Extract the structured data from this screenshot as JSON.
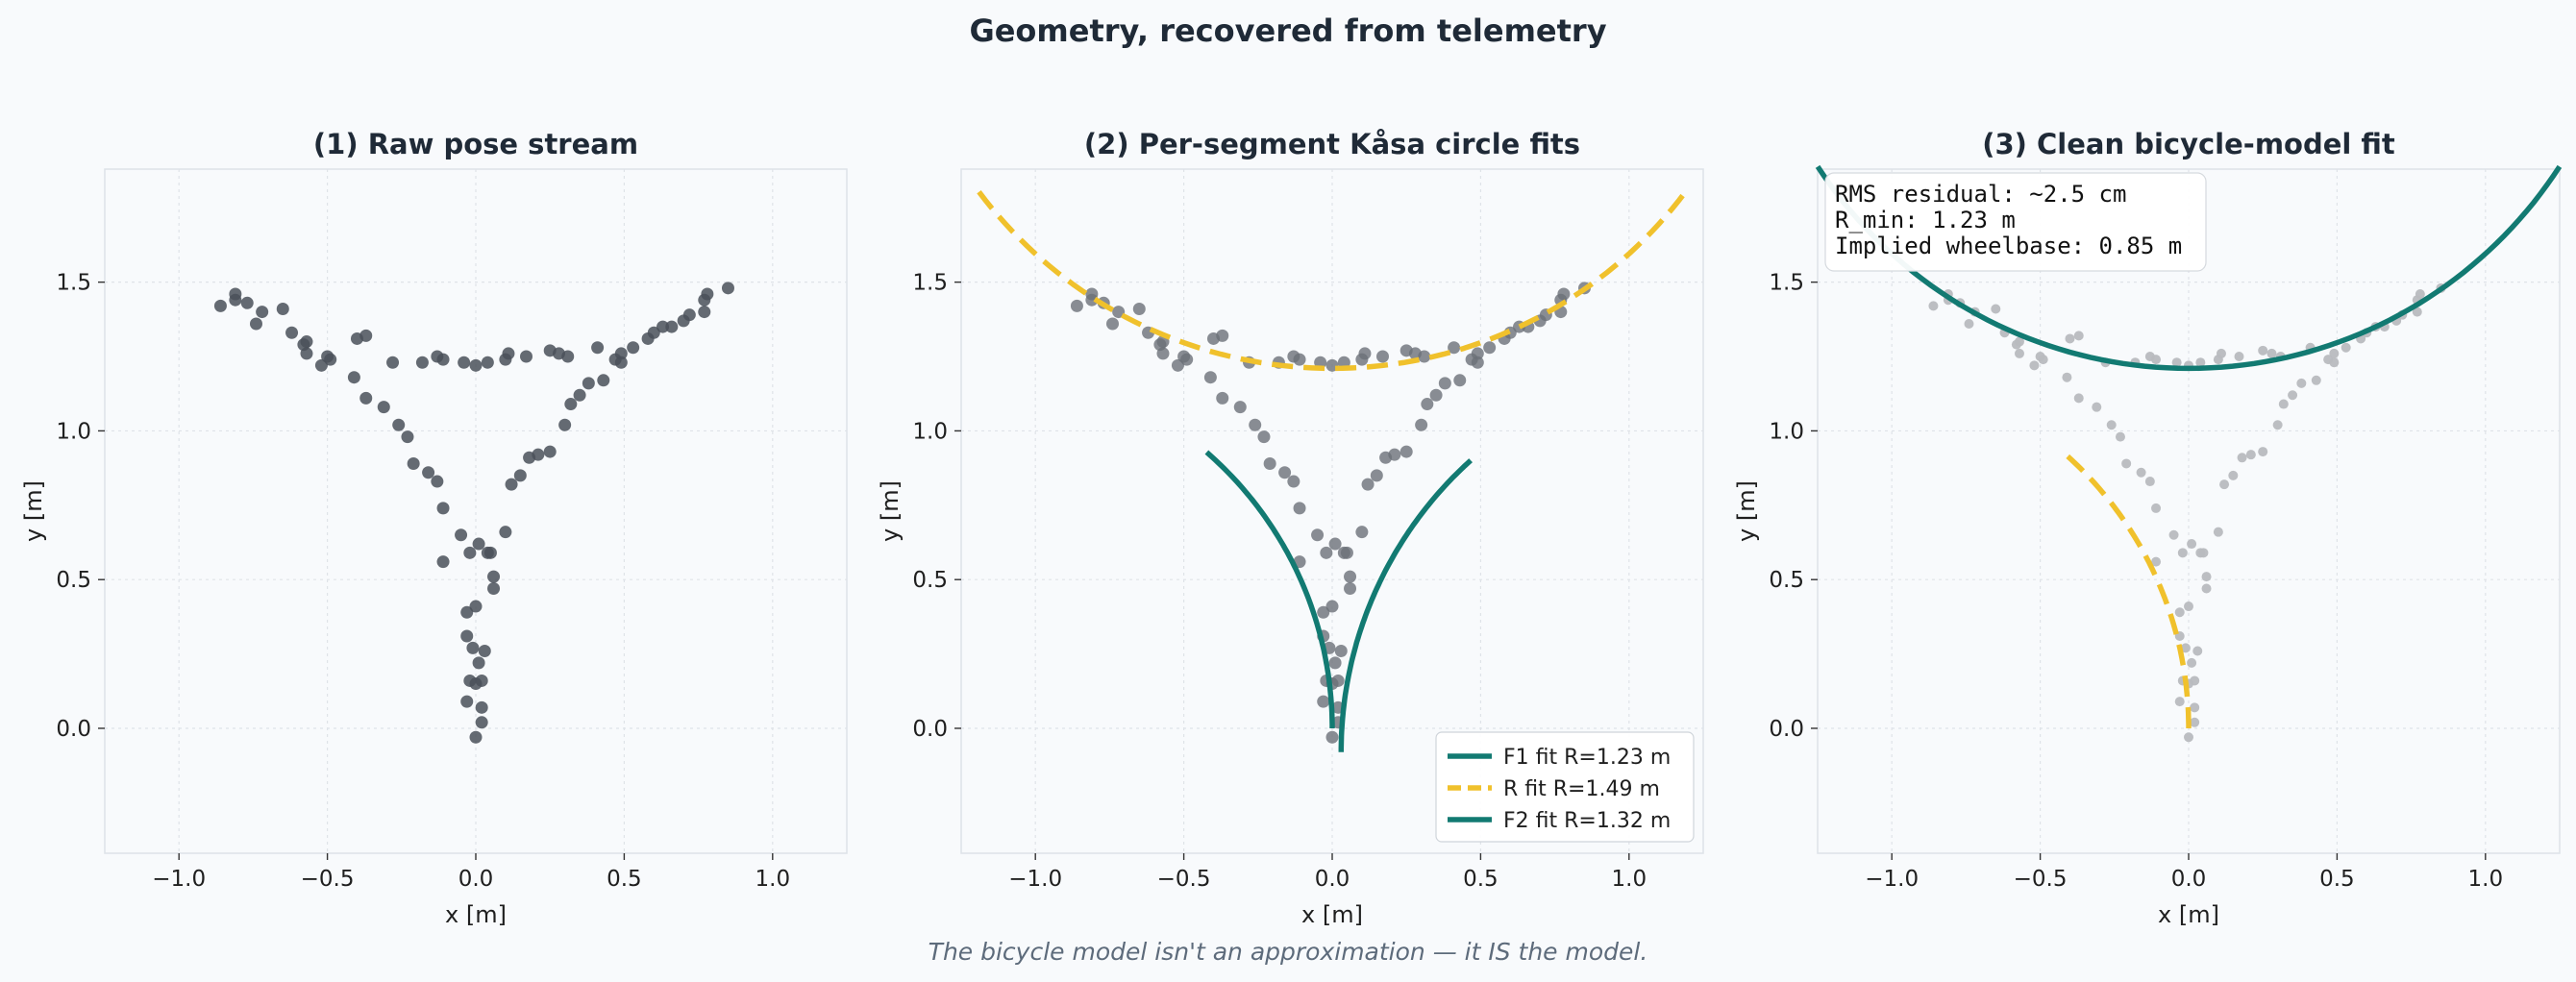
{
  "figure": {
    "suptitle": "Geometry, recovered from telemetry",
    "caption": "The bicycle model isn't an approximation — it IS the model."
  },
  "colors": {
    "teal": "#127a72",
    "gold": "#f0c12c",
    "raw_point": "#4a5059",
    "fit_point": "#6b7078",
    "faint_point": "#b8bbbf"
  },
  "chart_data": [
    {
      "type": "scatter",
      "title": "(1) Raw pose stream",
      "xlabel": "x [m]",
      "ylabel": "y [m]",
      "xlim": [
        -1.25,
        1.25
      ],
      "ylim": [
        -0.42,
        1.88
      ],
      "xticks": [
        "−1.0",
        "−0.5",
        "0.0",
        "0.5",
        "1.0"
      ],
      "yticks": [
        "0.0",
        "0.5",
        "1.0",
        "1.5"
      ],
      "grid": true,
      "series": [
        {
          "points_ref": "raw"
        }
      ]
    },
    {
      "type": "scatter",
      "title": "(2) Per-segment Kåsa circle fits",
      "xlabel": "x [m]",
      "ylabel": "y [m]",
      "xlim": [
        -1.25,
        1.25
      ],
      "ylim": [
        -0.42,
        1.88
      ],
      "xticks": [
        "−1.0",
        "−0.5",
        "0.0",
        "0.5",
        "1.0"
      ],
      "yticks": [
        "0.0",
        "0.5",
        "1.0",
        "1.5"
      ],
      "grid": true,
      "legend_position": "bottom-right",
      "series": [
        {
          "name": "F1 fit  R=1.23 m",
          "style": "solid",
          "color": "teal",
          "circle": {
            "cx": -1.23,
            "cy": 0.0,
            "r": 1.23,
            "from_deg": 0,
            "to_deg": 49
          }
        },
        {
          "name": "R fit  R=1.49 m",
          "style": "dashed",
          "color": "gold",
          "circle": {
            "cx": 0.0,
            "cy": 2.7,
            "r": 1.49,
            "from_deg": 217,
            "to_deg": 323
          }
        },
        {
          "name": "F2 fit  R=1.32 m",
          "style": "solid",
          "color": "teal",
          "circle": {
            "cx": 1.35,
            "cy": -0.08,
            "r": 1.32,
            "from_deg": 132,
            "to_deg": 180
          }
        }
      ]
    },
    {
      "type": "scatter",
      "title": "(3) Clean bicycle-model fit",
      "xlabel": "x [m]",
      "ylabel": "y [m]",
      "xlim": [
        -1.25,
        1.25
      ],
      "ylim": [
        -0.42,
        1.88
      ],
      "xticks": [
        "−1.0",
        "−0.5",
        "0.0",
        "0.5",
        "1.0"
      ],
      "yticks": [
        "0.0",
        "0.5",
        "1.0",
        "1.5"
      ],
      "grid": true,
      "annotation": [
        "RMS residual: ~2.5 cm",
        "R_min: 1.23 m",
        "Implied wheelbase: 0.85 m"
      ],
      "series": [
        {
          "style": "dashed",
          "color": "gold",
          "circle": {
            "cx": -1.23,
            "cy": 0.0,
            "r": 1.23,
            "from_deg": 0,
            "to_deg": 49
          },
          "clip_x_max": 0.0
        },
        {
          "style": "solid",
          "color": "teal",
          "circle": {
            "cx": 0.0,
            "cy": 2.7,
            "r": 1.49,
            "from_deg": 213,
            "to_deg": 327
          }
        }
      ]
    }
  ],
  "points": {
    "raw": [
      [
        -0.86,
        1.42
      ],
      [
        -0.81,
        1.44
      ],
      [
        -0.81,
        1.46
      ],
      [
        -0.77,
        1.43
      ],
      [
        -0.74,
        1.36
      ],
      [
        -0.72,
        1.4
      ],
      [
        -0.65,
        1.41
      ],
      [
        -0.62,
        1.33
      ],
      [
        -0.58,
        1.29
      ],
      [
        -0.57,
        1.3
      ],
      [
        -0.57,
        1.26
      ],
      [
        -0.52,
        1.22
      ],
      [
        -0.5,
        1.25
      ],
      [
        -0.4,
        1.31
      ],
      [
        -0.37,
        1.32
      ],
      [
        -0.28,
        1.23
      ],
      [
        -0.18,
        1.23
      ],
      [
        -0.13,
        1.25
      ],
      [
        -0.11,
        1.24
      ],
      [
        -0.04,
        1.23
      ],
      [
        0.0,
        1.22
      ],
      [
        0.04,
        1.23
      ],
      [
        0.1,
        1.24
      ],
      [
        0.11,
        1.26
      ],
      [
        0.17,
        1.25
      ],
      [
        0.25,
        1.27
      ],
      [
        0.28,
        1.26
      ],
      [
        0.31,
        1.25
      ],
      [
        0.41,
        1.28
      ],
      [
        0.47,
        1.24
      ],
      [
        0.49,
        1.26
      ],
      [
        0.53,
        1.28
      ],
      [
        0.58,
        1.31
      ],
      [
        0.6,
        1.33
      ],
      [
        0.63,
        1.35
      ],
      [
        0.66,
        1.35
      ],
      [
        0.7,
        1.37
      ],
      [
        0.72,
        1.39
      ],
      [
        0.77,
        1.4
      ],
      [
        0.77,
        1.44
      ],
      [
        0.78,
        1.46
      ],
      [
        0.85,
        1.48
      ],
      [
        -0.49,
        1.24
      ],
      [
        -0.41,
        1.18
      ],
      [
        -0.37,
        1.11
      ],
      [
        -0.31,
        1.08
      ],
      [
        -0.26,
        1.02
      ],
      [
        -0.23,
        0.98
      ],
      [
        -0.21,
        0.89
      ],
      [
        -0.16,
        0.86
      ],
      [
        -0.13,
        0.83
      ],
      [
        -0.11,
        0.74
      ],
      [
        -0.11,
        0.56
      ],
      [
        -0.05,
        0.65
      ],
      [
        -0.02,
        0.59
      ],
      [
        0.01,
        0.62
      ],
      [
        0.04,
        0.59
      ],
      [
        0.05,
        0.59
      ],
      [
        0.06,
        0.51
      ],
      [
        0.06,
        0.47
      ],
      [
        0.1,
        0.66
      ],
      [
        0.12,
        0.82
      ],
      [
        0.15,
        0.85
      ],
      [
        0.18,
        0.91
      ],
      [
        0.21,
        0.92
      ],
      [
        0.25,
        0.93
      ],
      [
        0.3,
        1.02
      ],
      [
        0.32,
        1.09
      ],
      [
        0.35,
        1.12
      ],
      [
        0.38,
        1.16
      ],
      [
        0.43,
        1.17
      ],
      [
        0.49,
        1.23
      ],
      [
        -0.03,
        0.39
      ],
      [
        0.0,
        0.41
      ],
      [
        -0.03,
        0.31
      ],
      [
        -0.01,
        0.27
      ],
      [
        0.01,
        0.22
      ],
      [
        0.03,
        0.26
      ],
      [
        0.02,
        0.16
      ],
      [
        -0.02,
        0.16
      ],
      [
        0.0,
        0.15
      ],
      [
        -0.03,
        0.09
      ],
      [
        0.02,
        0.07
      ],
      [
        0.02,
        0.02
      ],
      [
        0.0,
        -0.03
      ]
    ]
  }
}
